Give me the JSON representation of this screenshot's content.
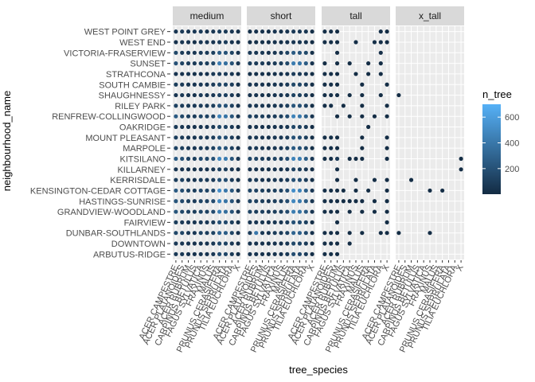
{
  "chart_data": {
    "type": "scatter",
    "facet_var": "height class",
    "facets": [
      "medium",
      "short",
      "tall",
      "x_tall"
    ],
    "xlabel": "tree_species",
    "ylabel": "neighbourhood_name",
    "x_tick_labels": [
      "ACER CAMPESTRE",
      "ACER PLATANOIDES",
      "ACER RUBRUM",
      "CARPINUS BETULUS",
      "FAGUS SYLVATICA",
      "FRAXINUS",
      "MALUS",
      "PRUNUS CERASIFERA",
      "PRUNUS SERRULATA",
      "TILIA EUCHLORA",
      "X"
    ],
    "y_categories": [
      "WEST POINT GREY",
      "WEST END",
      "VICTORIA-FRASERVIEW",
      "SUNSET",
      "STRATHCONA",
      "SOUTH CAMBIE",
      "SHAUGHNESSY",
      "RILEY PARK",
      "RENFREW-COLLINGWOOD",
      "OAKRIDGE",
      "MOUNT PLEASANT",
      "MARPOLE",
      "KITSILANO",
      "KILLARNEY",
      "KERRISDALE",
      "KENSINGTON-CEDAR COTTAGE",
      "HASTINGS-SUNRISE",
      "GRANDVIEW-WOODLAND",
      "FAIRVIEW",
      "DUNBAR-SOUTHLANDS",
      "DOWNTOWN",
      "ARBUTUS-RIDGE"
    ],
    "color_legend": {
      "title": "n_tree",
      "breaks": [
        200,
        400,
        600
      ],
      "range": [
        1,
        700
      ],
      "low_color": "#132B43",
      "high_color": "#56B1F7"
    },
    "facet_points": {
      "medium": [
        [
          60,
          80,
          50,
          70,
          90,
          40,
          60,
          100,
          80,
          60,
          30
        ],
        [
          40,
          60,
          50,
          30,
          70,
          60,
          50,
          80,
          90,
          40,
          20
        ],
        [
          150,
          80,
          70,
          60,
          90,
          80,
          110,
          250,
          200,
          120,
          40
        ],
        [
          200,
          120,
          90,
          80,
          110,
          100,
          150,
          420,
          350,
          200,
          60
        ],
        [
          50,
          40,
          60,
          30,
          50,
          40,
          70,
          90,
          80,
          60,
          20
        ],
        [
          100,
          80,
          60,
          50,
          70,
          60,
          90,
          150,
          130,
          90,
          30
        ],
        [
          60,
          70,
          50,
          40,
          80,
          60,
          70,
          120,
          110,
          70,
          30
        ],
        [
          120,
          90,
          80,
          70,
          90,
          80,
          100,
          220,
          200,
          110,
          40
        ],
        [
          250,
          150,
          110,
          90,
          140,
          120,
          160,
          460,
          380,
          220,
          60
        ],
        [
          80,
          60,
          50,
          40,
          60,
          50,
          80,
          150,
          120,
          70,
          20
        ],
        [
          100,
          80,
          60,
          50,
          90,
          70,
          90,
          200,
          170,
          90,
          30
        ],
        [
          120,
          100,
          70,
          60,
          90,
          80,
          110,
          250,
          200,
          110,
          40
        ],
        [
          250,
          200,
          120,
          100,
          180,
          150,
          200,
          480,
          420,
          220,
          70
        ],
        [
          60,
          50,
          40,
          30,
          50,
          40,
          60,
          120,
          100,
          60,
          20
        ],
        [
          100,
          120,
          60,
          50,
          100,
          80,
          90,
          200,
          180,
          90,
          30
        ],
        [
          250,
          180,
          120,
          100,
          160,
          130,
          180,
          520,
          400,
          230,
          70
        ],
        [
          220,
          160,
          110,
          90,
          140,
          120,
          170,
          480,
          380,
          210,
          60
        ],
        [
          220,
          150,
          120,
          100,
          150,
          120,
          170,
          430,
          350,
          200,
          60
        ],
        [
          100,
          80,
          70,
          60,
          90,
          70,
          90,
          200,
          160,
          100,
          30
        ],
        [
          150,
          140,
          80,
          70,
          130,
          100,
          130,
          300,
          260,
          140,
          40
        ],
        [
          80,
          60,
          50,
          40,
          60,
          50,
          70,
          150,
          120,
          70,
          20
        ],
        [
          80,
          70,
          50,
          40,
          60,
          50,
          70,
          180,
          140,
          80,
          30
        ]
      ],
      "short": [
        [
          30,
          40,
          40,
          20,
          50,
          30,
          50,
          80,
          70,
          60,
          20
        ],
        [
          20,
          30,
          30,
          20,
          40,
          30,
          40,
          60,
          60,
          40,
          10
        ],
        [
          80,
          60,
          70,
          40,
          60,
          80,
          120,
          250,
          220,
          150,
          30
        ],
        [
          100,
          80,
          90,
          60,
          80,
          100,
          150,
          420,
          380,
          250,
          50
        ],
        [
          30,
          30,
          40,
          20,
          30,
          40,
          50,
          90,
          80,
          60,
          20
        ],
        [
          60,
          50,
          50,
          30,
          50,
          50,
          80,
          150,
          140,
          90,
          30
        ],
        [
          40,
          50,
          40,
          30,
          50,
          50,
          60,
          120,
          110,
          80,
          20
        ],
        [
          70,
          60,
          60,
          40,
          60,
          70,
          100,
          220,
          200,
          120,
          30
        ],
        [
          120,
          90,
          100,
          70,
          90,
          110,
          170,
          460,
          410,
          260,
          60
        ],
        [
          40,
          40,
          40,
          30,
          40,
          50,
          60,
          150,
          130,
          80,
          20
        ],
        [
          60,
          60,
          50,
          40,
          60,
          60,
          80,
          200,
          180,
          100,
          30
        ],
        [
          70,
          70,
          60,
          40,
          60,
          70,
          100,
          250,
          220,
          130,
          30
        ],
        [
          140,
          130,
          110,
          80,
          120,
          120,
          180,
          460,
          430,
          260,
          70
        ],
        [
          40,
          40,
          30,
          20,
          40,
          30,
          50,
          120,
          100,
          60,
          20
        ],
        [
          70,
          80,
          50,
          40,
          70,
          60,
          80,
          200,
          180,
          90,
          30
        ],
        [
          140,
          120,
          110,
          80,
          110,
          120,
          180,
          520,
          460,
          270,
          70
        ],
        [
          130,
          110,
          100,
          70,
          100,
          110,
          170,
          480,
          420,
          250,
          60
        ],
        [
          130,
          100,
          110,
          80,
          100,
          110,
          160,
          430,
          380,
          240,
          60
        ],
        [
          60,
          60,
          60,
          40,
          60,
          60,
          90,
          200,
          180,
          110,
          30
        ],
        [
          90,
          400,
          70,
          50,
          90,
          90,
          120,
          300,
          280,
          160,
          40
        ],
        [
          50,
          40,
          40,
          30,
          40,
          40,
          60,
          150,
          140,
          80,
          20
        ],
        [
          50,
          50,
          40,
          30,
          40,
          50,
          70,
          180,
          160,
          90,
          20
        ]
      ],
      "tall": [
        [
          20,
          20,
          10,
          null,
          null,
          null,
          null,
          null,
          null,
          20,
          10
        ],
        [
          20,
          20,
          10,
          null,
          null,
          20,
          null,
          null,
          20,
          20,
          10
        ],
        [
          null,
          null,
          10,
          null,
          null,
          null,
          null,
          null,
          null,
          20,
          null
        ],
        [
          10,
          null,
          10,
          null,
          10,
          null,
          null,
          10,
          null,
          10,
          null
        ],
        [
          20,
          20,
          10,
          null,
          null,
          10,
          null,
          10,
          null,
          10,
          null
        ],
        [
          20,
          20,
          10,
          null,
          null,
          null,
          10,
          null,
          null,
          null,
          10
        ],
        [
          20,
          20,
          20,
          null,
          10,
          null,
          10,
          null,
          null,
          10,
          null
        ],
        [
          20,
          20,
          null,
          10,
          null,
          null,
          10,
          null,
          null,
          null,
          10
        ],
        [
          null,
          null,
          10,
          null,
          10,
          null,
          10,
          null,
          10,
          null,
          10
        ],
        [
          null,
          null,
          null,
          null,
          null,
          null,
          null,
          10,
          null,
          null,
          null
        ],
        [
          20,
          20,
          10,
          null,
          null,
          null,
          10,
          null,
          null,
          null,
          10
        ],
        [
          20,
          20,
          10,
          null,
          null,
          null,
          10,
          null,
          null,
          null,
          10
        ],
        [
          20,
          20,
          80,
          null,
          10,
          10,
          10,
          null,
          null,
          null,
          10
        ],
        [
          null,
          null,
          20,
          null,
          null,
          null,
          null,
          null,
          null,
          null,
          null
        ],
        [
          null,
          null,
          10,
          null,
          null,
          10,
          null,
          null,
          10,
          null,
          10
        ],
        [
          20,
          20,
          10,
          10,
          null,
          10,
          null,
          10,
          null,
          null,
          10
        ],
        [
          20,
          20,
          10,
          10,
          10,
          10,
          10,
          null,
          10,
          null,
          10
        ],
        [
          20,
          20,
          10,
          null,
          10,
          null,
          10,
          null,
          10,
          null,
          10
        ],
        [
          null,
          null,
          10,
          null,
          null,
          null,
          null,
          null,
          null,
          null,
          10
        ],
        [
          20,
          20,
          10,
          null,
          10,
          null,
          10,
          null,
          null,
          10,
          10
        ],
        [
          20,
          20,
          10,
          null,
          10,
          null,
          null,
          null,
          null,
          null,
          null
        ],
        [
          20,
          20,
          10,
          null,
          null,
          null,
          null,
          null,
          null,
          null,
          null
        ]
      ],
      "x_tall": [
        [
          null,
          null,
          null,
          null,
          null,
          null,
          null,
          null,
          null,
          null,
          null
        ],
        [
          null,
          null,
          null,
          null,
          null,
          null,
          null,
          null,
          null,
          null,
          null
        ],
        [
          null,
          null,
          null,
          null,
          null,
          null,
          null,
          null,
          null,
          null,
          null
        ],
        [
          null,
          null,
          null,
          null,
          null,
          null,
          null,
          null,
          null,
          null,
          null
        ],
        [
          null,
          null,
          null,
          null,
          null,
          null,
          null,
          null,
          null,
          null,
          null
        ],
        [
          null,
          null,
          null,
          null,
          null,
          null,
          null,
          null,
          null,
          null,
          null
        ],
        [
          10,
          null,
          null,
          null,
          null,
          null,
          null,
          null,
          null,
          null,
          null
        ],
        [
          null,
          null,
          null,
          null,
          null,
          null,
          null,
          null,
          null,
          null,
          null
        ],
        [
          null,
          null,
          null,
          null,
          null,
          null,
          null,
          null,
          null,
          null,
          null
        ],
        [
          null,
          null,
          null,
          null,
          null,
          null,
          null,
          null,
          null,
          null,
          null
        ],
        [
          null,
          null,
          null,
          null,
          null,
          null,
          null,
          null,
          null,
          null,
          null
        ],
        [
          null,
          null,
          null,
          null,
          null,
          null,
          null,
          null,
          null,
          null,
          null
        ],
        [
          null,
          null,
          null,
          null,
          null,
          null,
          null,
          null,
          null,
          null,
          10
        ],
        [
          null,
          null,
          null,
          null,
          null,
          null,
          null,
          null,
          null,
          null,
          10
        ],
        [
          null,
          null,
          10,
          null,
          null,
          null,
          null,
          null,
          null,
          null,
          null
        ],
        [
          null,
          null,
          null,
          null,
          null,
          10,
          null,
          10,
          null,
          null,
          null
        ],
        [
          null,
          null,
          null,
          null,
          null,
          null,
          null,
          null,
          null,
          null,
          null
        ],
        [
          null,
          null,
          null,
          null,
          null,
          null,
          null,
          null,
          null,
          null,
          null
        ],
        [
          null,
          null,
          null,
          null,
          null,
          null,
          null,
          null,
          null,
          null,
          null
        ],
        [
          10,
          null,
          null,
          null,
          null,
          10,
          null,
          null,
          null,
          null,
          null
        ],
        [
          null,
          null,
          null,
          null,
          null,
          null,
          null,
          null,
          null,
          null,
          null
        ],
        [
          null,
          null,
          null,
          null,
          null,
          null,
          null,
          null,
          null,
          null,
          null
        ]
      ]
    }
  }
}
